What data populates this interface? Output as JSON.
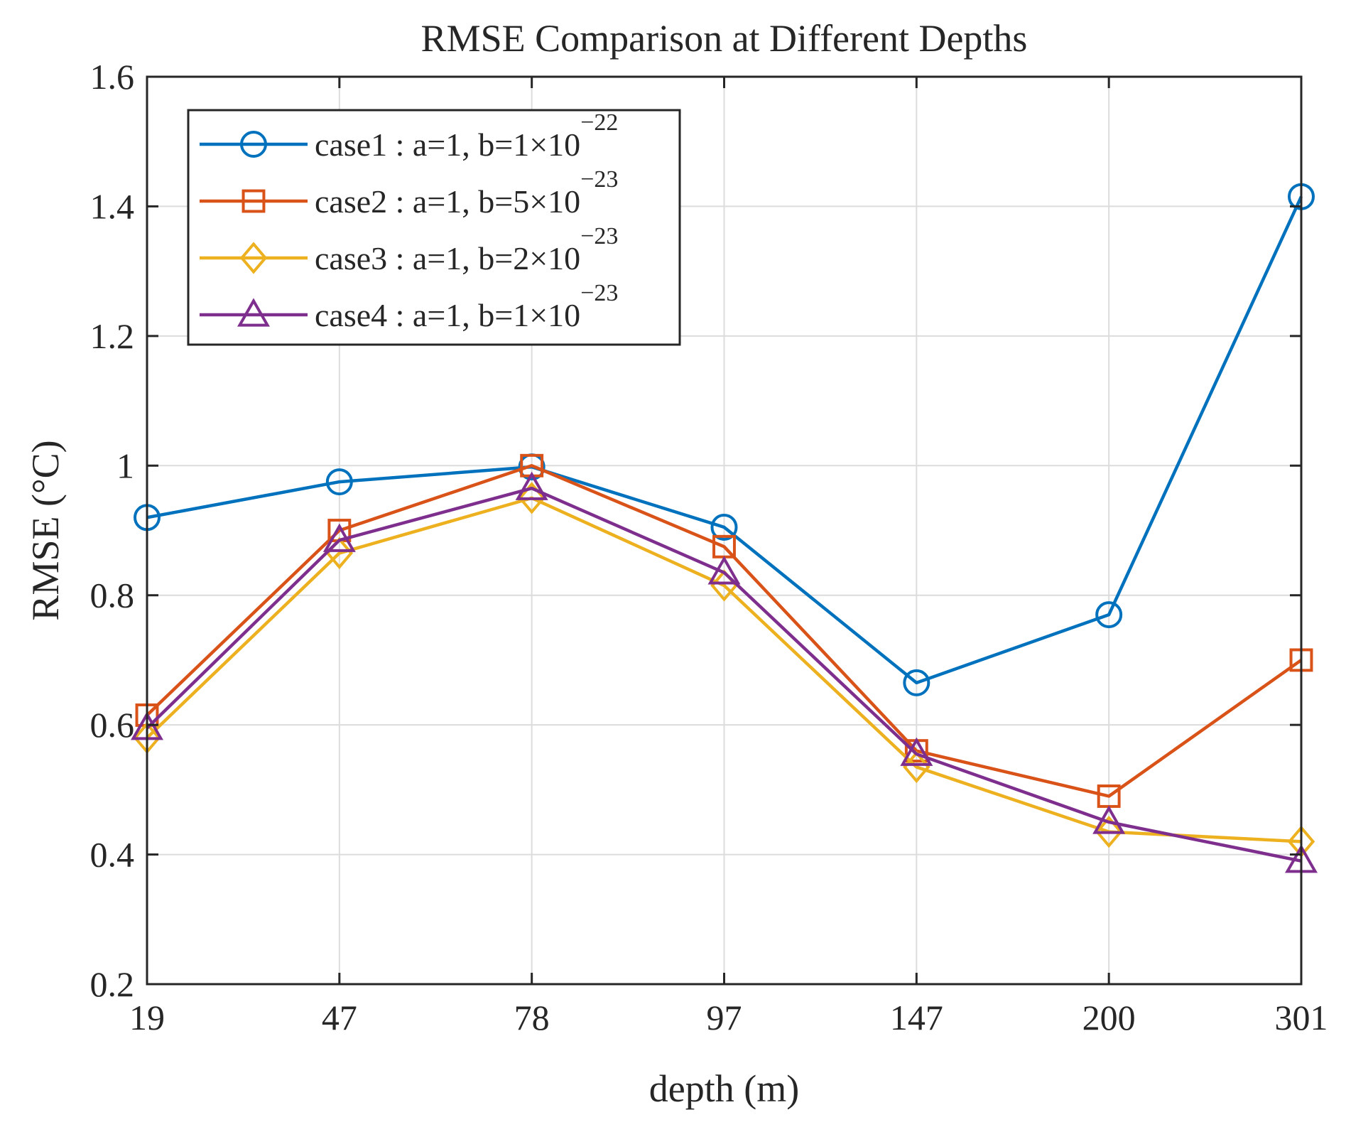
{
  "chart_data": {
    "type": "line",
    "title": "RMSE Comparison at Different Depths",
    "xlabel": "depth (m)",
    "ylabel": "RMSE (°C)",
    "categories": [
      "19",
      "47",
      "78",
      "97",
      "147",
      "200",
      "301"
    ],
    "ylim": [
      0.2,
      1.6
    ],
    "yticks": [
      0.2,
      0.4,
      0.6,
      0.8,
      1,
      1.2,
      1.4,
      1.6
    ],
    "ytick_labels": [
      "0.2",
      "0.4",
      "0.6",
      "0.8",
      "1",
      "1.2",
      "1.4",
      "1.6"
    ],
    "grid": true,
    "legend_position": "top-left",
    "series": [
      {
        "name": "case1 : a=1, b=1×10^−22",
        "legend_main": "case1 : a=1, b=1×10",
        "legend_exp": "−22",
        "color": "#0072BD",
        "marker": "circle",
        "values": [
          0.92,
          0.975,
          0.998,
          0.905,
          0.665,
          0.77,
          1.415
        ]
      },
      {
        "name": "case2 : a=1, b=5×10^−23",
        "legend_main": "case2 : a=1, b=5×10",
        "legend_exp": "−23",
        "color": "#D95319",
        "marker": "square",
        "values": [
          0.615,
          0.9,
          1.0,
          0.875,
          0.56,
          0.49,
          0.7
        ]
      },
      {
        "name": "case3 : a=1, b=2×10^−23",
        "legend_main": "case3 : a=1, b=2×10",
        "legend_exp": "−23",
        "color": "#EDB120",
        "marker": "diamond",
        "values": [
          0.58,
          0.865,
          0.95,
          0.815,
          0.535,
          0.435,
          0.42
        ]
      },
      {
        "name": "case4 : a=1, b=1×10^−23",
        "legend_main": "case4 : a=1, b=1×10",
        "legend_exp": "−23",
        "color": "#7E2F8E",
        "marker": "triangle",
        "values": [
          0.595,
          0.885,
          0.965,
          0.835,
          0.555,
          0.45,
          0.39
        ]
      }
    ]
  }
}
